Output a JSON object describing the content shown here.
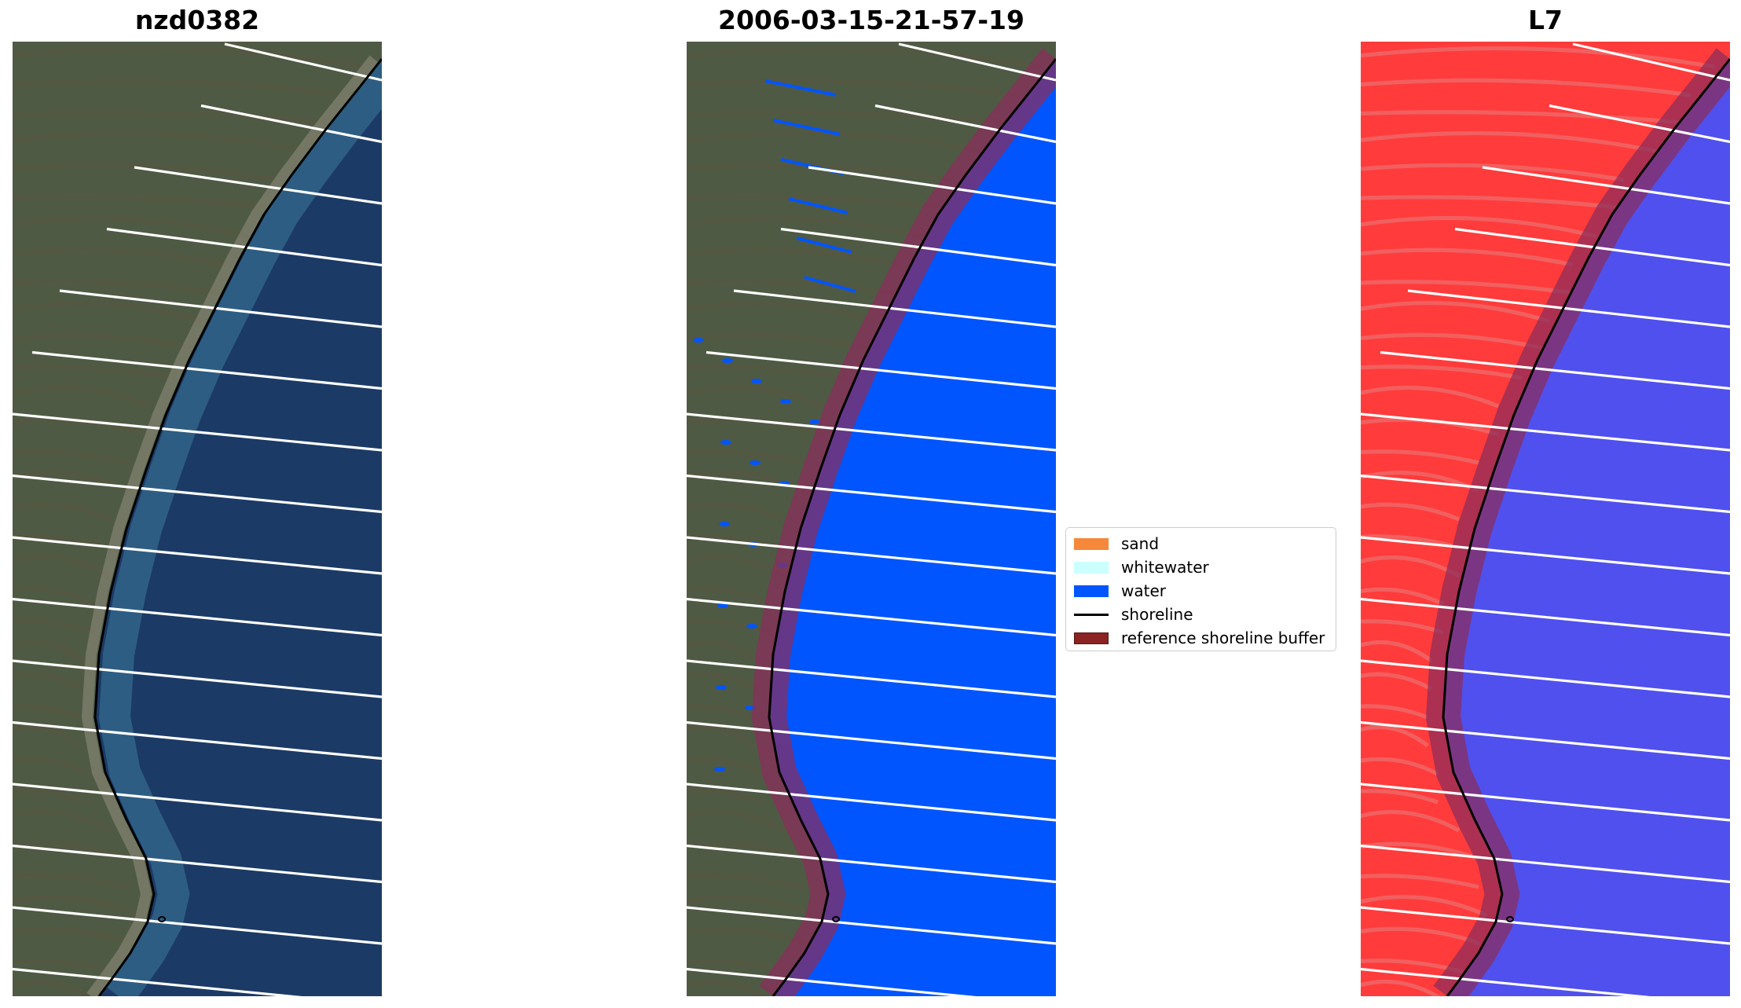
{
  "panels": [
    {
      "title": "nzd0382",
      "kind": "rgb"
    },
    {
      "title": "2006-03-15-21-57-19",
      "kind": "classified"
    },
    {
      "title": "L7",
      "kind": "mndwi"
    }
  ],
  "legend": {
    "entries": [
      {
        "label": "sand",
        "type": "patch",
        "color": "#f5883a"
      },
      {
        "label": "whitewater",
        "type": "patch",
        "color": "#ccffff"
      },
      {
        "label": "water",
        "type": "patch",
        "color": "#0055ff"
      },
      {
        "label": "shoreline",
        "type": "line",
        "color": "#000000"
      },
      {
        "label": "reference shoreline buffer",
        "type": "patch",
        "color": "#8b2323"
      }
    ]
  },
  "colors": {
    "land": "#4f5a44",
    "sea": "#1c3a66",
    "water_class": "#0055ff",
    "mndwi_land": "#ff3b3b",
    "mndwi_water": "#5050ee",
    "buffer": "#8b2d5a",
    "transect": "#ffffff",
    "shoreline": "#000000"
  }
}
